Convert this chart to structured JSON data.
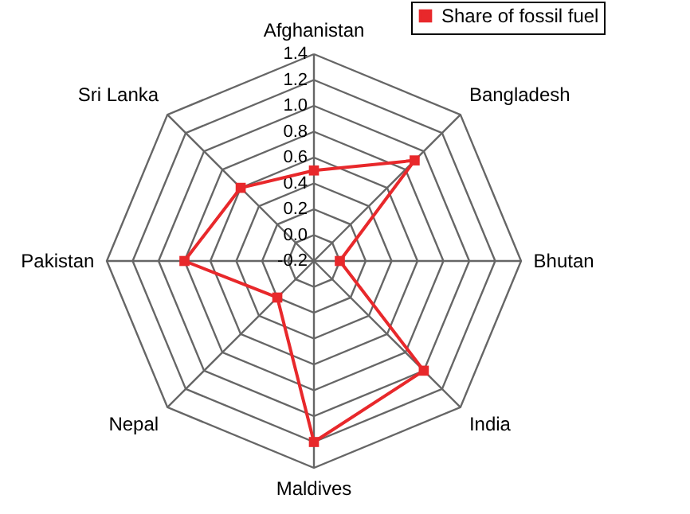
{
  "chart_data": {
    "type": "radar",
    "categories": [
      "Afghanistan",
      "Bangladesh",
      "Bhutan",
      "India",
      "Maldives",
      "Nepal",
      "Pakistan",
      "Sri Lanka"
    ],
    "series": [
      {
        "name": "Share of fossil fuel",
        "color": "#e8282b",
        "values": [
          0.5,
          0.9,
          0.0,
          1.0,
          1.2,
          0.2,
          0.8,
          0.6
        ]
      }
    ],
    "ylim": [
      -0.2,
      1.4
    ],
    "yticks": [
      {
        "value": -0.2,
        "label": "-0.2"
      },
      {
        "value": 0,
        "label": "0.0"
      },
      {
        "value": 0.2,
        "label": "0.2"
      },
      {
        "value": 0.4,
        "label": "0.4"
      },
      {
        "value": 0.6,
        "label": "0.6"
      },
      {
        "value": 0.8,
        "label": "0.8"
      },
      {
        "value": 1.0,
        "label": "1.0"
      },
      {
        "value": 1.2,
        "label": "1.2"
      },
      {
        "value": 1.4,
        "label": "1.4"
      }
    ],
    "grid": true,
    "legend": "top right",
    "marker": "square",
    "line_style": "solid"
  }
}
